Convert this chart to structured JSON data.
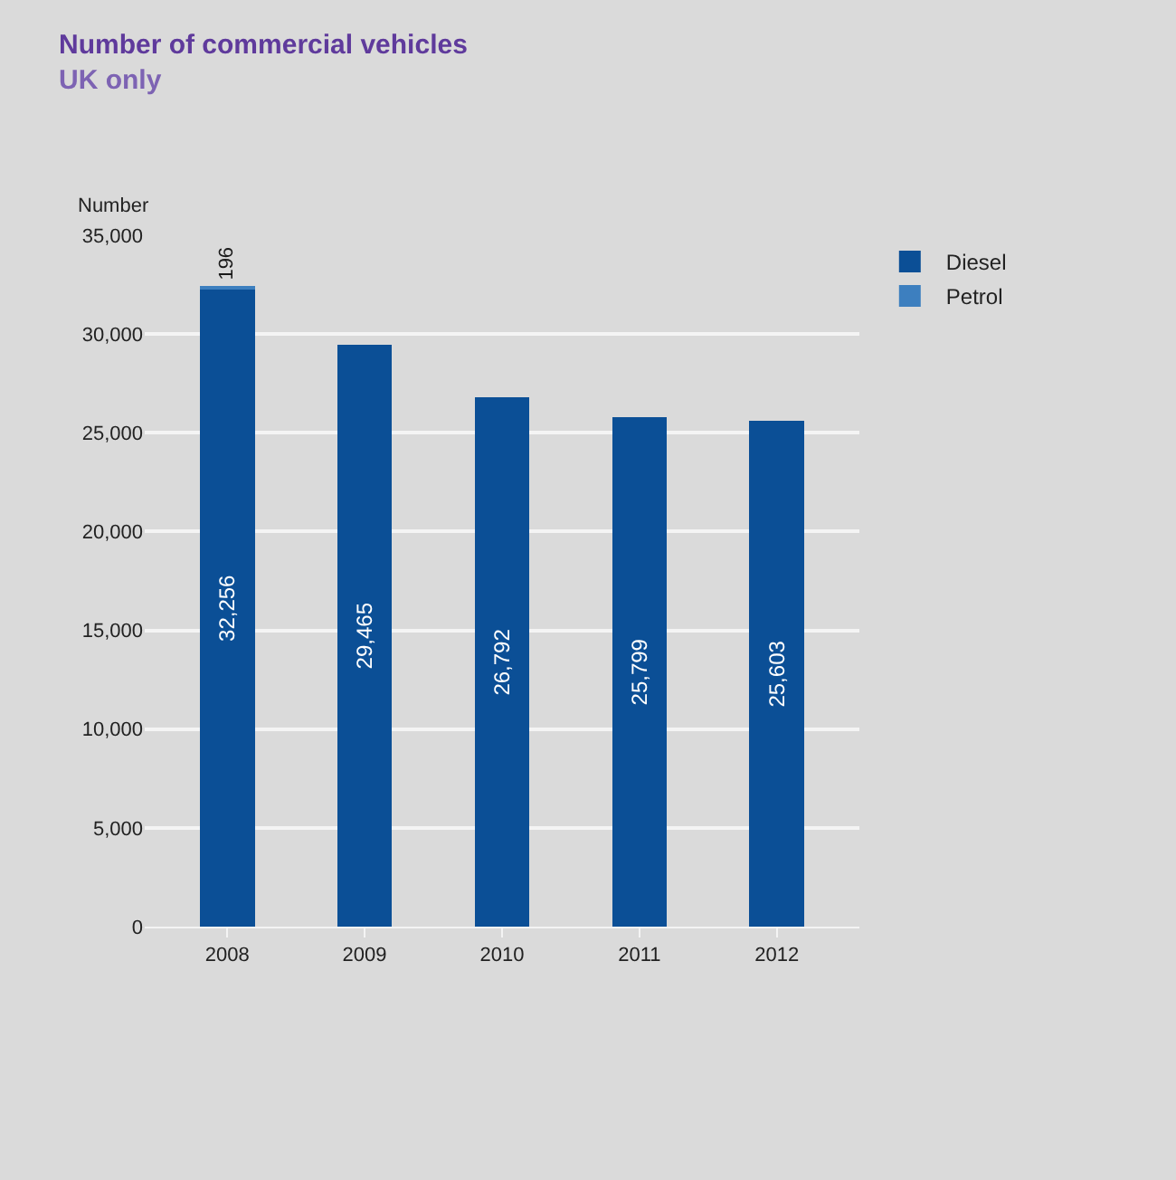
{
  "chart_data": {
    "type": "bar",
    "title": "Number of commercial vehicles",
    "subtitle": "UK only",
    "ylabel": "Number",
    "categories": [
      "2008",
      "2009",
      "2010",
      "2011",
      "2012"
    ],
    "stacked": true,
    "series": [
      {
        "name": "Diesel",
        "color": "#0b4f96",
        "values": [
          32256,
          29465,
          26792,
          25799,
          25603
        ],
        "value_labels": [
          "32,256",
          "29,465",
          "26,792",
          "25,799",
          "25,603"
        ]
      },
      {
        "name": "Petrol",
        "color": "#3d7fbf",
        "values": [
          196,
          null,
          null,
          null,
          null
        ],
        "value_labels": [
          "196",
          null,
          null,
          null,
          null
        ]
      }
    ],
    "ylim": [
      0,
      35000
    ],
    "yticks": [
      {
        "value": 0,
        "label": "0"
      },
      {
        "value": 5000,
        "label": "5,000"
      },
      {
        "value": 10000,
        "label": "10,000"
      },
      {
        "value": 15000,
        "label": "15,000"
      },
      {
        "value": 20000,
        "label": "20,000"
      },
      {
        "value": 25000,
        "label": "25,000"
      },
      {
        "value": 30000,
        "label": "30,000"
      },
      {
        "value": 35000,
        "label": "35,000"
      }
    ],
    "grid": "y",
    "legend": "top right"
  }
}
